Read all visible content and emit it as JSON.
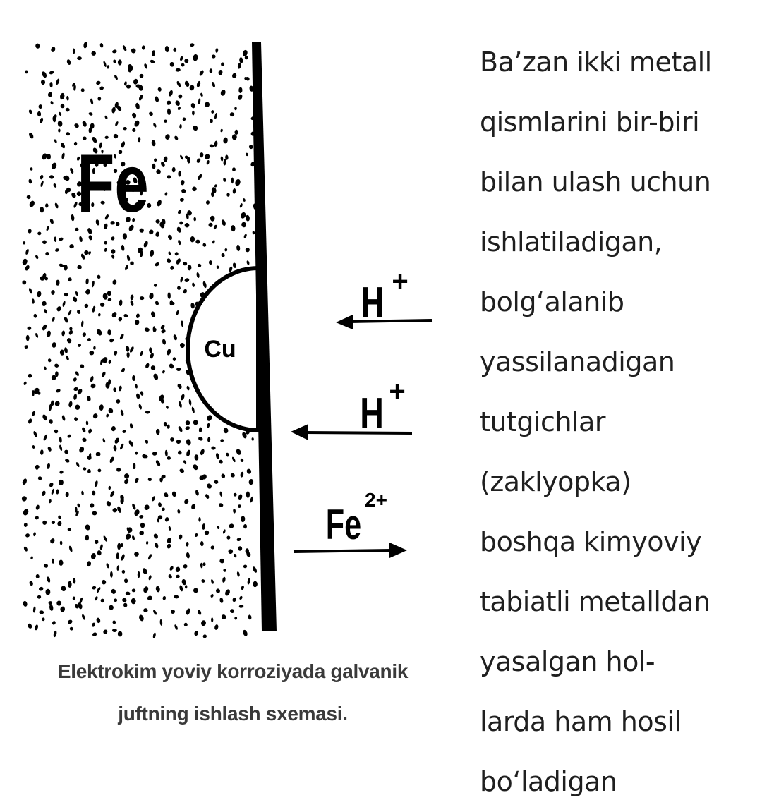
{
  "diagram": {
    "metal_label": "Fe",
    "inclusion_label": "Cu",
    "ion_top": {
      "symbol": "H",
      "charge": "+"
    },
    "ion_middle": {
      "symbol": "H",
      "charge": "+"
    },
    "ion_bottom": {
      "symbol": "Fe",
      "charge": "2+"
    }
  },
  "caption": {
    "line1": "Elektrokim yoviy korroziyada galvanik",
    "line2": "juftning ishlash sxemasi."
  },
  "paragraph": {
    "lines": [
      "Ba’zan ikki metall",
      "qismlarini bir-biri",
      "bilan ulash uchun",
      "ishlatiladigan,",
      "bolg‘alanib",
      "yassilanadigan",
      "tutgichlar",
      "(zaklyopka)",
      "boshqa kimyoviy",
      "tabiatli metalldan",
      "yasalgan hol-",
      "larda ham hosil",
      "bo‘ladigan"
    ]
  }
}
